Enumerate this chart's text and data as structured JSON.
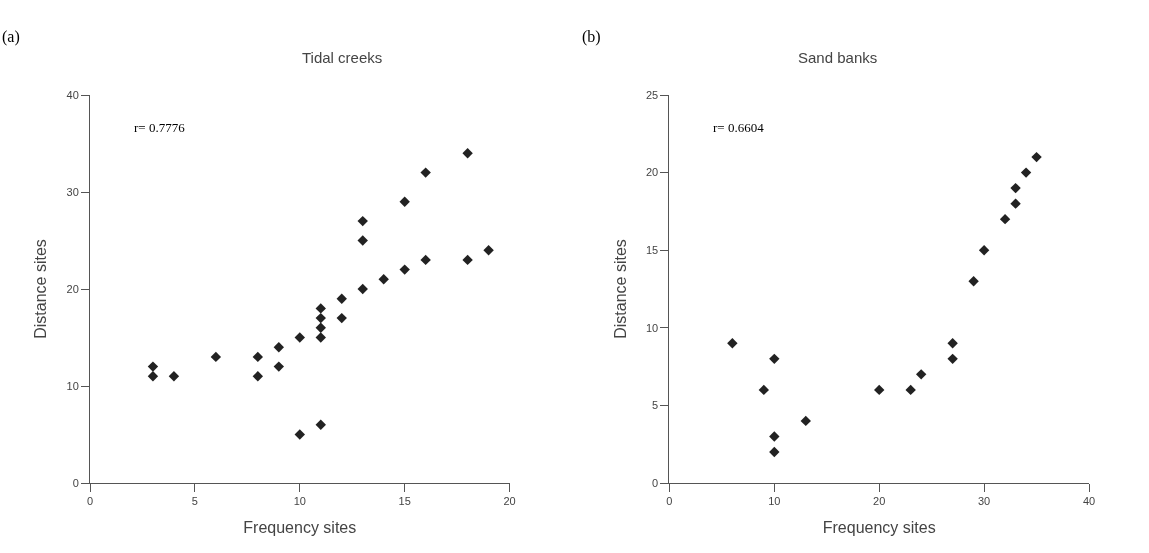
{
  "chart_data": [
    {
      "type": "scatter",
      "title": "Tidal creeks",
      "xlabel": "Frequency sites",
      "ylabel": "Distance sites",
      "annotations": [
        "(a)",
        "r= 0.7776"
      ],
      "marker": "diamond",
      "x": [
        3,
        3,
        4,
        6,
        8,
        8,
        9,
        9,
        10,
        10,
        11,
        11,
        11,
        11,
        11,
        12,
        12,
        13,
        13,
        13,
        14,
        15,
        15,
        16,
        16,
        18,
        18,
        19
      ],
      "series": [
        {
          "color": "#222222",
          "values": [
            12,
            11,
            11,
            13,
            13,
            11,
            14,
            12,
            15,
            5,
            18,
            17,
            16,
            15,
            6,
            19,
            17,
            27,
            25,
            20,
            21,
            29,
            22,
            32,
            23,
            34,
            23,
            24
          ]
        }
      ],
      "xlim": [
        0,
        20
      ],
      "xticks": [
        0,
        5,
        10,
        15,
        20
      ],
      "ylim": [
        0,
        40
      ],
      "yticks": [
        0,
        10,
        20,
        30,
        40
      ]
    },
    {
      "type": "scatter",
      "title": "Sand banks",
      "xlabel": "Frequency sites",
      "ylabel": "Distance sites",
      "annotations": [
        "(b)",
        "r= 0.6604"
      ],
      "marker": "diamond",
      "x": [
        6,
        9,
        10,
        10,
        10,
        13,
        20,
        23,
        24,
        27,
        27,
        29,
        30,
        32,
        33,
        33,
        34,
        35
      ],
      "series": [
        {
          "color": "#222222",
          "values": [
            9,
            6,
            8,
            3,
            2,
            4,
            6,
            6,
            7,
            9,
            8,
            13,
            15,
            17,
            18,
            19,
            20,
            21
          ]
        }
      ],
      "xlim": [
        0,
        40
      ],
      "xticks": [
        0,
        10,
        20,
        30,
        40
      ],
      "ylim": [
        0,
        25
      ],
      "yticks": [
        0,
        5,
        10,
        15,
        20,
        25
      ]
    }
  ]
}
